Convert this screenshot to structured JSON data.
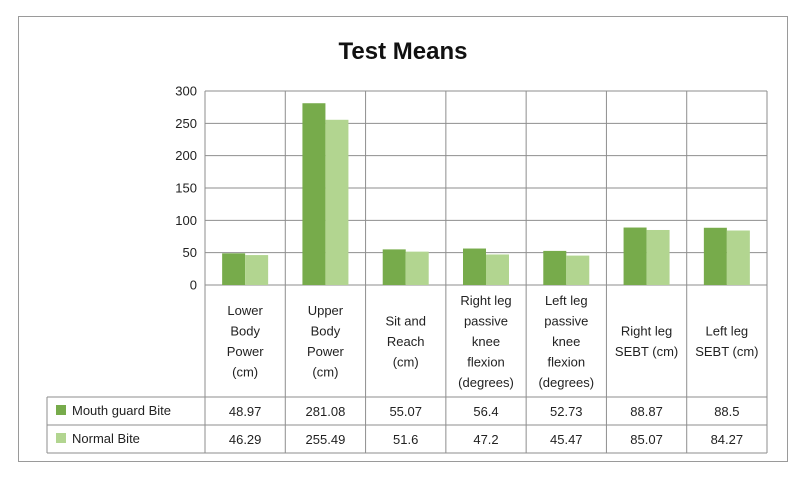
{
  "chart_data": {
    "type": "bar",
    "title": "Test Means",
    "categories": [
      [
        "Lower",
        "Body",
        "Power",
        "(cm)"
      ],
      [
        "Upper",
        "Body",
        "Power",
        "(cm)"
      ],
      [
        "Sit and",
        "Reach",
        "(cm)"
      ],
      [
        "Right leg",
        "passive",
        "knee",
        "flexion",
        "(degrees)"
      ],
      [
        "Left leg",
        "passive",
        "knee",
        "flexion",
        "(degrees)"
      ],
      [
        "Right leg",
        "SEBT (cm)"
      ],
      [
        "Left leg",
        "SEBT (cm)"
      ]
    ],
    "series": [
      {
        "name": "Mouth guard Bite",
        "color": "#77ab4b",
        "values": [
          48.97,
          281.08,
          55.07,
          56.4,
          52.73,
          88.87,
          88.5
        ],
        "labels": [
          "48.97",
          "281.08",
          "55.07",
          "56.4",
          "52.73",
          "88.87",
          "88.5"
        ]
      },
      {
        "name": "Normal Bite",
        "color": "#b2d590",
        "values": [
          46.29,
          255.49,
          51.6,
          47.2,
          45.47,
          85.07,
          84.27
        ],
        "labels": [
          "46.29",
          "255.49",
          "51.6",
          "47.2",
          "45.47",
          "85.07",
          "84.27"
        ]
      }
    ],
    "yticks": [
      0,
      50,
      100,
      150,
      200,
      250,
      300
    ],
    "ylim": [
      0,
      300
    ],
    "grid": true,
    "legend": "data-table"
  }
}
